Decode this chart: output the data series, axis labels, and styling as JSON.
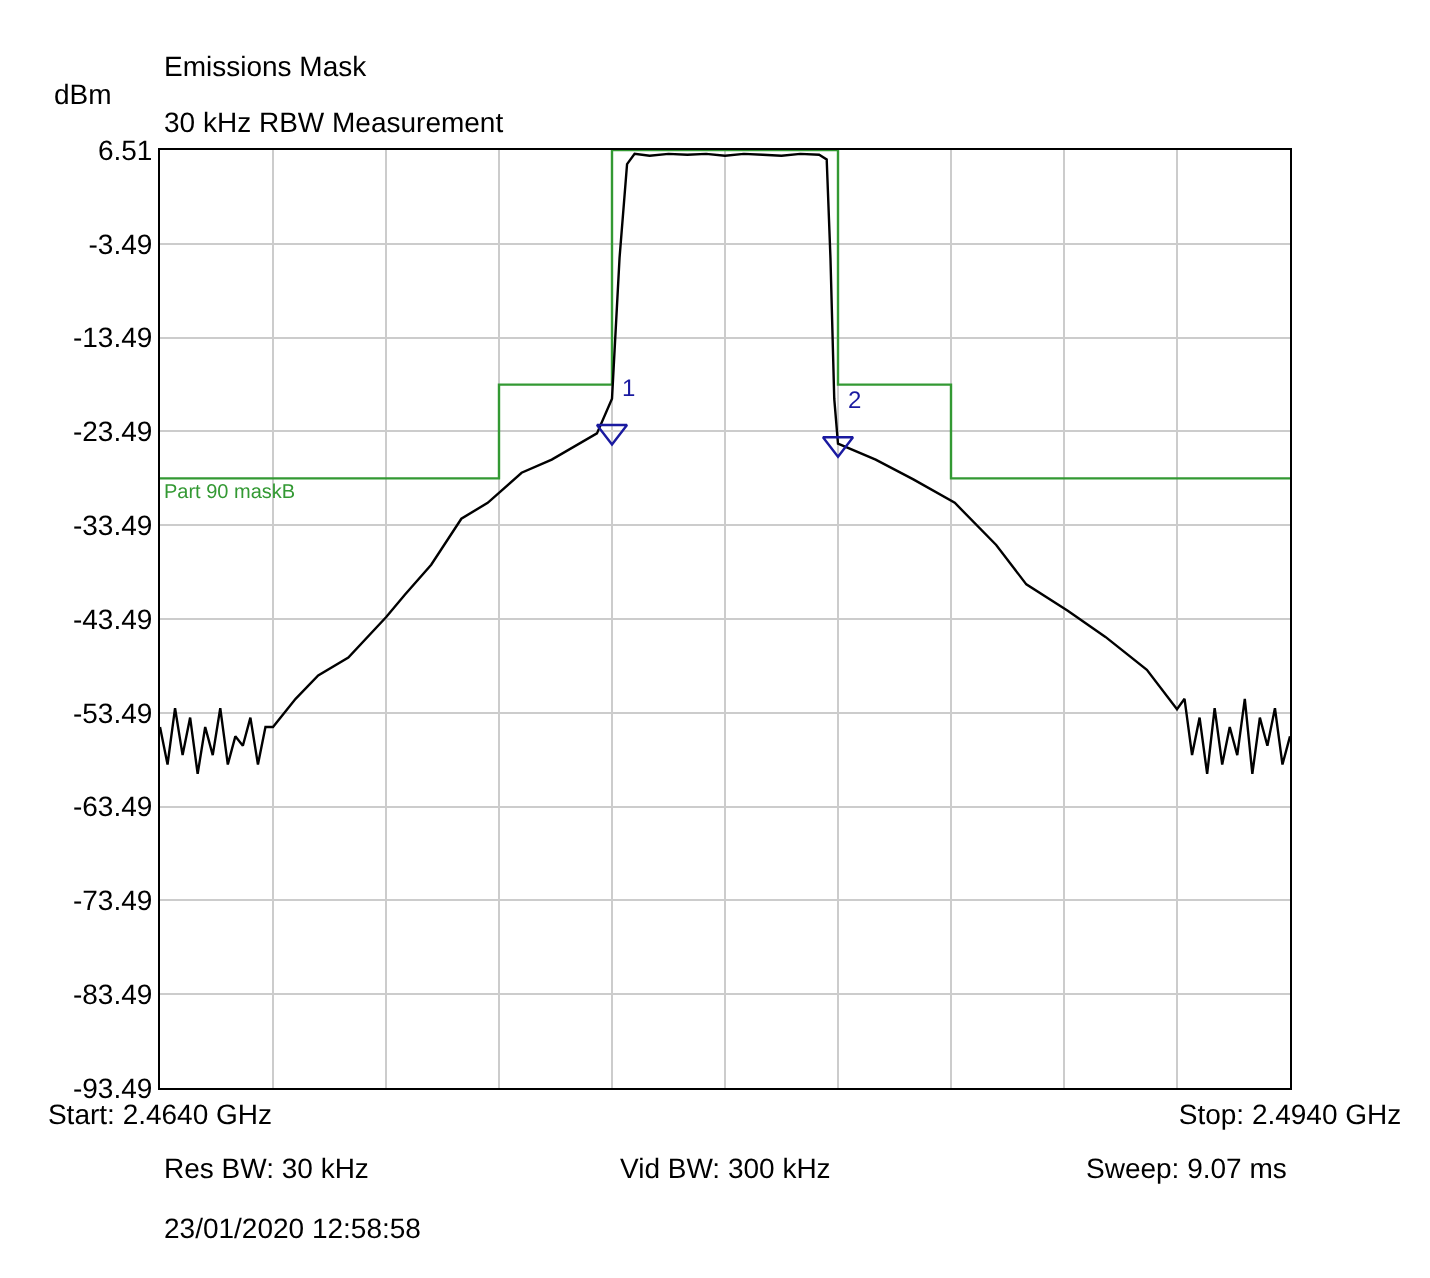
{
  "chart_data": {
    "type": "line",
    "title": "Emissions Mask",
    "subtitle": "30 kHz RBW Measurement",
    "ylabel": "dBm",
    "xlim": [
      2.464,
      2.494
    ],
    "xticks": [
      {
        "value": 2.464,
        "label": "Start: 2.4640 GHz"
      },
      {
        "value": 2.467,
        "label": null
      },
      {
        "value": 2.47,
        "label": null
      },
      {
        "value": 2.473,
        "label": null
      },
      {
        "value": 2.476,
        "label": null
      },
      {
        "value": 2.479,
        "label": null
      },
      {
        "value": 2.482,
        "label": null
      },
      {
        "value": 2.485,
        "label": null
      },
      {
        "value": 2.488,
        "label": null
      },
      {
        "value": 2.491,
        "label": null
      },
      {
        "value": 2.494,
        "label": "Stop: 2.4940 GHz"
      }
    ],
    "ylim": [
      -93.49,
      6.51
    ],
    "yticks": [
      6.51,
      -3.49,
      -13.49,
      -23.49,
      -33.49,
      -43.49,
      -53.49,
      -63.49,
      -73.49,
      -83.49,
      -93.49
    ],
    "grid": true,
    "series": [
      {
        "name": "Part 90 maskB",
        "type": "step",
        "color": "#339933",
        "x": [
          2.464,
          2.473,
          2.476,
          2.482,
          2.485,
          2.494
        ],
        "values": [
          -28.5,
          -18.5,
          6.5,
          -18.5,
          -28.5,
          -28.5
        ]
      },
      {
        "color": "#000000",
        "x": [
          2.464,
          2.4642,
          2.4644,
          2.4646,
          2.4648,
          2.465,
          2.4652,
          2.4654,
          2.4656,
          2.4658,
          2.466,
          2.4662,
          2.4664,
          2.4666,
          2.4668,
          2.467,
          2.4676,
          2.4682,
          2.469,
          2.47,
          2.4705,
          2.4712,
          2.472,
          2.4727,
          2.4736,
          2.4744,
          2.4756,
          2.476,
          2.4762,
          2.4764,
          2.4766,
          2.477,
          2.4775,
          2.478,
          2.4785,
          2.479,
          2.4795,
          2.48,
          2.4805,
          2.481,
          2.4815,
          2.4817,
          2.4818,
          2.4819,
          2.482,
          2.483,
          2.484,
          2.4851,
          2.4862,
          2.487,
          2.4881,
          2.4891,
          2.4902,
          2.491,
          2.4912,
          2.4914,
          2.4916,
          2.4918,
          2.492,
          2.4922,
          2.4924,
          2.4926,
          2.4928,
          2.493,
          2.4932,
          2.4934,
          2.4936,
          2.4938,
          2.494
        ],
        "values": [
          -55,
          -59,
          -53,
          -58,
          -54,
          -60,
          -55,
          -58,
          -53,
          -59,
          -56,
          -57,
          -54,
          -59,
          -55,
          -55,
          -52,
          -49.5,
          -47.6,
          -43.3,
          -40.9,
          -37.7,
          -32.8,
          -31.1,
          -27.9,
          -26.5,
          -23.7,
          -20,
          -5,
          5,
          6.1,
          5.9,
          6.1,
          6.0,
          6.1,
          5.9,
          6.1,
          6.0,
          5.9,
          6.1,
          6.0,
          5.5,
          -5,
          -20,
          -24.8,
          -26.5,
          -28.6,
          -31.1,
          -35.6,
          -39.8,
          -42.6,
          -45.4,
          -48.9,
          -53.1,
          -52,
          -58,
          -54,
          -60,
          -53,
          -59,
          -55,
          -58,
          -52,
          -60,
          -54,
          -57,
          -53,
          -59,
          -56
        ]
      },
      {
        "type": "scatter",
        "marker": "triangle",
        "color": "#1a1aa0",
        "x": [
          2.476,
          2.482
        ],
        "values": [
          -23.5,
          -24.8
        ]
      }
    ],
    "annotations": [
      {
        "text": "1",
        "x": 2.476,
        "y": -23.5
      },
      {
        "text": "2",
        "x": 2.482,
        "y": -24.8
      },
      "Res BW: 30 kHz",
      "Vid BW: 300 kHz",
      "Sweep: 9.07 ms",
      "23/01/2020 12:58:58"
    ]
  }
}
